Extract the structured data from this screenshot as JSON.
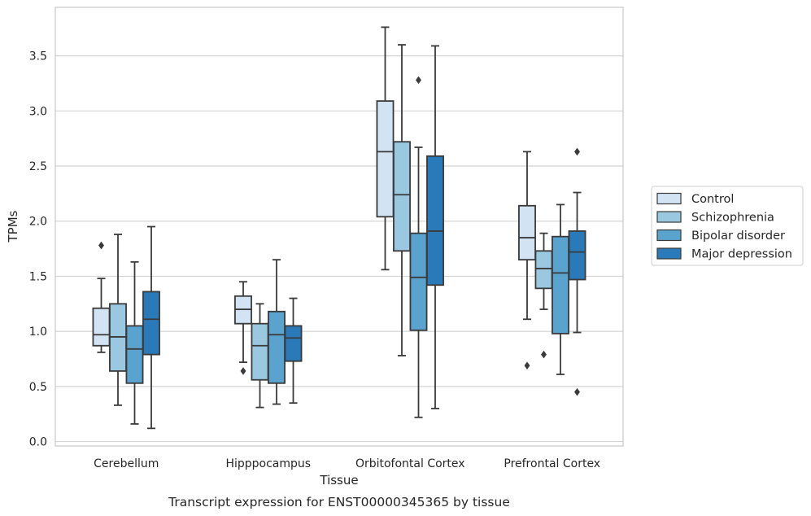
{
  "chart_data": {
    "type": "box",
    "caption": "Transcript expression for ENST00000345365 by tissue",
    "xlabel": "Tissue",
    "ylabel": "TPMs",
    "ylim": [
      -0.04,
      3.94
    ],
    "yticks": [
      "0.0",
      "0.5",
      "1.0",
      "1.5",
      "2.0",
      "2.5",
      "3.0",
      "3.5"
    ],
    "grid": "horizontal",
    "legend_position": "right",
    "categories": [
      "Cerebellum",
      "Hipppocampus",
      "Orbitofontal Cortex",
      "Prefrontal Cortex"
    ],
    "series": [
      {
        "name": "Control",
        "color": "#d2e3f3",
        "boxes": [
          {
            "whisker_low": 0.81,
            "q1": 0.87,
            "median": 0.97,
            "q3": 1.21,
            "whisker_high": 1.48,
            "outliers": [
              1.78
            ]
          },
          {
            "whisker_low": 0.72,
            "q1": 1.07,
            "median": 1.2,
            "q3": 1.32,
            "whisker_high": 1.45,
            "outliers": [
              0.64
            ]
          },
          {
            "whisker_low": 1.56,
            "q1": 2.04,
            "median": 2.63,
            "q3": 3.09,
            "whisker_high": 3.76,
            "outliers": []
          },
          {
            "whisker_low": 1.11,
            "q1": 1.65,
            "median": 1.85,
            "q3": 2.14,
            "whisker_high": 2.63,
            "outliers": [
              0.69
            ]
          }
        ]
      },
      {
        "name": "Schizophrenia",
        "color": "#9ac8e0",
        "boxes": [
          {
            "whisker_low": 0.33,
            "q1": 0.64,
            "median": 0.95,
            "q3": 1.25,
            "whisker_high": 1.88,
            "outliers": []
          },
          {
            "whisker_low": 0.31,
            "q1": 0.56,
            "median": 0.87,
            "q3": 1.07,
            "whisker_high": 1.25,
            "outliers": []
          },
          {
            "whisker_low": 0.78,
            "q1": 1.73,
            "median": 2.24,
            "q3": 2.72,
            "whisker_high": 3.6,
            "outliers": []
          },
          {
            "whisker_low": 1.2,
            "q1": 1.39,
            "median": 1.57,
            "q3": 1.73,
            "whisker_high": 1.89,
            "outliers": [
              0.79
            ]
          }
        ]
      },
      {
        "name": "Bipolar disorder",
        "color": "#5ba3cf",
        "boxes": [
          {
            "whisker_low": 0.16,
            "q1": 0.53,
            "median": 0.84,
            "q3": 1.05,
            "whisker_high": 1.63,
            "outliers": []
          },
          {
            "whisker_low": 0.34,
            "q1": 0.53,
            "median": 0.97,
            "q3": 1.18,
            "whisker_high": 1.65,
            "outliers": []
          },
          {
            "whisker_low": 0.22,
            "q1": 1.01,
            "median": 1.49,
            "q3": 1.89,
            "whisker_high": 2.67,
            "outliers": [
              3.28
            ]
          },
          {
            "whisker_low": 0.61,
            "q1": 0.98,
            "median": 1.53,
            "q3": 1.86,
            "whisker_high": 2.15,
            "outliers": []
          }
        ]
      },
      {
        "name": "Major depression",
        "color": "#2a7ab9",
        "boxes": [
          {
            "whisker_low": 0.12,
            "q1": 0.79,
            "median": 1.11,
            "q3": 1.36,
            "whisker_high": 1.95,
            "outliers": []
          },
          {
            "whisker_low": 0.35,
            "q1": 0.73,
            "median": 0.94,
            "q3": 1.05,
            "whisker_high": 1.3,
            "outliers": []
          },
          {
            "whisker_low": 0.3,
            "q1": 1.42,
            "median": 1.91,
            "q3": 2.59,
            "whisker_high": 3.59,
            "outliers": []
          },
          {
            "whisker_low": 0.99,
            "q1": 1.47,
            "median": 1.72,
            "q3": 1.91,
            "whisker_high": 2.26,
            "outliers": [
              2.63,
              0.45
            ]
          }
        ]
      }
    ]
  }
}
